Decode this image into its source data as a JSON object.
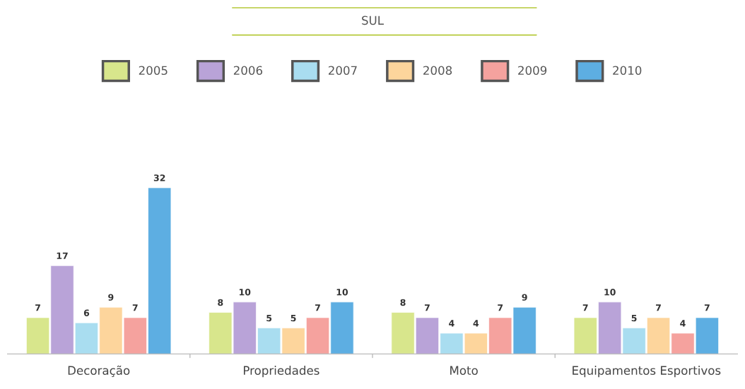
{
  "chart_data": {
    "type": "bar",
    "title": "SUL",
    "categories": [
      "Decoração",
      "Propriedades",
      "Moto",
      "Equipamentos Esportivos"
    ],
    "series": [
      {
        "name": "2005",
        "color": "#d8e68c",
        "values": [
          7,
          8,
          8,
          7
        ]
      },
      {
        "name": "2006",
        "color": "#b9a3d8",
        "values": [
          17,
          10,
          7,
          10
        ]
      },
      {
        "name": "2007",
        "color": "#a9ddf0",
        "values": [
          6,
          5,
          4,
          5
        ]
      },
      {
        "name": "2008",
        "color": "#fdd59c",
        "values": [
          9,
          5,
          4,
          7
        ]
      },
      {
        "name": "2009",
        "color": "#f5a29e",
        "values": [
          7,
          7,
          7,
          4
        ]
      },
      {
        "name": "2010",
        "color": "#5daee2",
        "values": [
          32,
          10,
          9,
          7
        ]
      }
    ],
    "data_labels": true,
    "legend": "top",
    "grid": false,
    "tick_labels": "x"
  }
}
